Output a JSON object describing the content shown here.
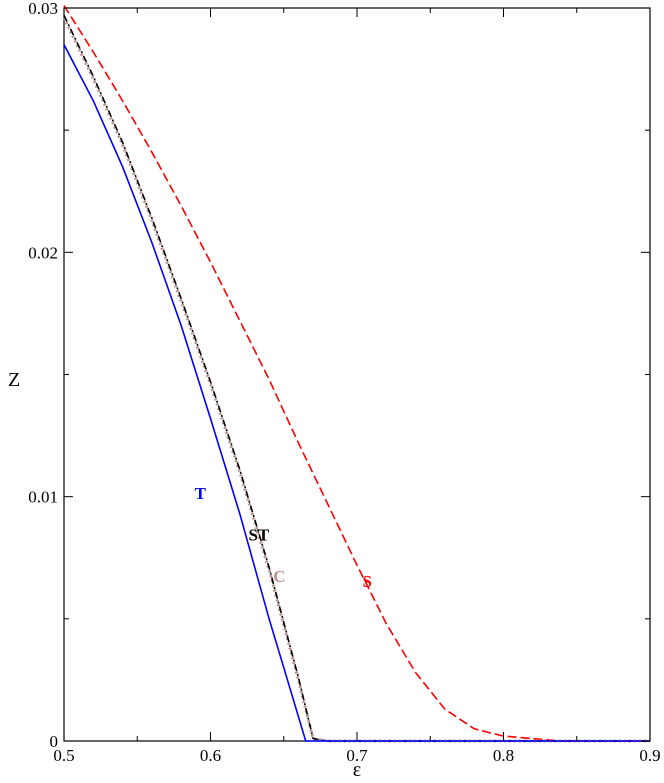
{
  "chart_data": {
    "type": "line",
    "title": "",
    "xlabel": "ε",
    "ylabel": "Z",
    "xlim": [
      0.5,
      0.9
    ],
    "ylim": [
      0,
      0.03
    ],
    "x_ticks": [
      0.5,
      0.6,
      0.7,
      0.8,
      0.9
    ],
    "x_tick_labels": [
      "0.5",
      "0.6",
      "0.7",
      "0.8",
      "0.9"
    ],
    "y_ticks": [
      0,
      0.01,
      0.02,
      0.03
    ],
    "y_tick_labels": [
      "0",
      "0.01",
      "0.02",
      "0.03"
    ],
    "grid": false,
    "series": [
      {
        "name": "S",
        "color": "#ff0000",
        "style": "dashed",
        "x": [
          0.5,
          0.52,
          0.54,
          0.56,
          0.58,
          0.6,
          0.62,
          0.64,
          0.66,
          0.68,
          0.7,
          0.72,
          0.74,
          0.76,
          0.78,
          0.8,
          0.82,
          0.84,
          0.86,
          0.9
        ],
        "y": [
          0.0301,
          0.0282,
          0.0262,
          0.0241,
          0.0219,
          0.0196,
          0.0172,
          0.0148,
          0.0122,
          0.0097,
          0.0072,
          0.0048,
          0.0028,
          0.0013,
          0.0005,
          0.0002,
          0.0001,
          0.0,
          0.0,
          0.0
        ]
      },
      {
        "name": "C",
        "color": "#bc8f8f",
        "style": "dotted",
        "x": [
          0.5,
          0.52,
          0.54,
          0.56,
          0.58,
          0.6,
          0.62,
          0.64,
          0.66,
          0.67,
          0.68,
          0.75,
          0.9
        ],
        "y": [
          0.0296,
          0.0271,
          0.0244,
          0.0213,
          0.018,
          0.0146,
          0.011,
          0.007,
          0.0025,
          0.0001,
          0.0,
          0.0,
          0.0
        ]
      },
      {
        "name": "ST",
        "color": "#000000",
        "style": "dash-dot",
        "x": [
          0.5,
          0.52,
          0.54,
          0.56,
          0.58,
          0.6,
          0.62,
          0.64,
          0.66,
          0.67,
          0.68,
          0.75,
          0.9
        ],
        "y": [
          0.0297,
          0.0272,
          0.0245,
          0.0214,
          0.0181,
          0.0147,
          0.0111,
          0.0071,
          0.0026,
          0.0001,
          0.0,
          0.0,
          0.0
        ]
      },
      {
        "name": "T",
        "color": "#0000ff",
        "style": "solid",
        "x": [
          0.5,
          0.52,
          0.54,
          0.56,
          0.58,
          0.6,
          0.62,
          0.64,
          0.65,
          0.665,
          0.68,
          0.9
        ],
        "y": [
          0.0285,
          0.0262,
          0.0235,
          0.0204,
          0.017,
          0.0132,
          0.0093,
          0.005,
          0.003,
          0.0,
          0.0,
          0.0
        ]
      }
    ],
    "annotations": [
      {
        "text": "T",
        "x": 0.593,
        "y": 0.0099,
        "color": "#0000ff"
      },
      {
        "text": "ST",
        "x": 0.633,
        "y": 0.0082,
        "color": "#000000"
      },
      {
        "text": "C",
        "x": 0.647,
        "y": 0.0065,
        "color": "#bc8f8f"
      },
      {
        "text": "S",
        "x": 0.707,
        "y": 0.0063,
        "color": "#ff0000"
      }
    ]
  }
}
